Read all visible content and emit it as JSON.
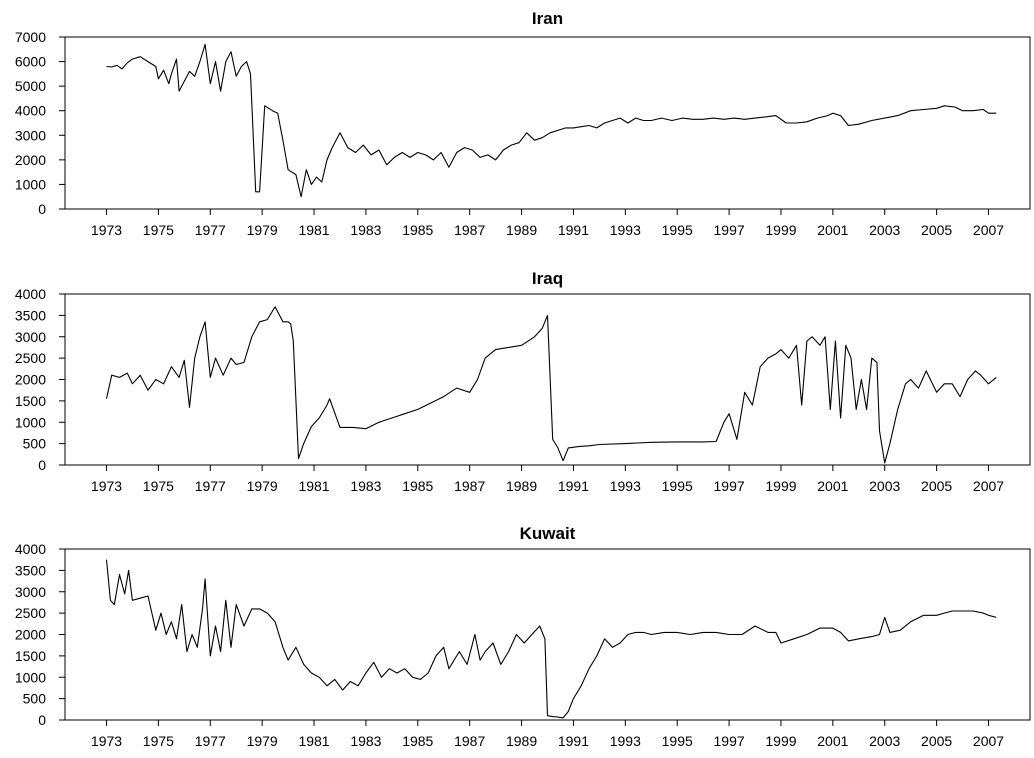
{
  "chart_data": [
    {
      "type": "line",
      "title": "Iran",
      "ylim": [
        0,
        7000
      ],
      "yticks": [
        0,
        1000,
        2000,
        3000,
        4000,
        5000,
        6000,
        7000
      ],
      "xlim": [
        1971.4,
        2008.6
      ],
      "xticks": [
        1973,
        1975,
        1977,
        1979,
        1981,
        1983,
        1985,
        1987,
        1989,
        1991,
        1993,
        1995,
        1997,
        1999,
        2001,
        2003,
        2005,
        2007
      ],
      "x": [
        1973.0,
        1973.2,
        1973.4,
        1973.6,
        1973.8,
        1974.0,
        1974.3,
        1974.6,
        1974.9,
        1975.0,
        1975.2,
        1975.4,
        1975.5,
        1975.7,
        1975.8,
        1976.0,
        1976.2,
        1976.4,
        1976.6,
        1976.8,
        1977.0,
        1977.2,
        1977.4,
        1977.6,
        1977.8,
        1978.0,
        1978.2,
        1978.4,
        1978.55,
        1978.75,
        1978.9,
        1979.1,
        1979.4,
        1979.6,
        1979.8,
        1980.0,
        1980.3,
        1980.5,
        1980.7,
        1980.9,
        1981.1,
        1981.3,
        1981.5,
        1981.7,
        1982.0,
        1982.3,
        1982.6,
        1982.9,
        1983.2,
        1983.5,
        1983.8,
        1984.1,
        1984.4,
        1984.7,
        1985.0,
        1985.3,
        1985.6,
        1985.9,
        1986.2,
        1986.5,
        1986.8,
        1987.1,
        1987.4,
        1987.7,
        1988.0,
        1988.3,
        1988.6,
        1988.9,
        1989.2,
        1989.5,
        1989.8,
        1990.1,
        1990.4,
        1990.7,
        1991.0,
        1991.3,
        1991.6,
        1991.9,
        1992.2,
        1992.5,
        1992.8,
        1993.1,
        1993.4,
        1993.7,
        1994.0,
        1994.4,
        1994.8,
        1995.2,
        1995.6,
        1996.0,
        1996.4,
        1996.8,
        1997.2,
        1997.6,
        1998.0,
        1998.4,
        1998.8,
        1999.2,
        1999.6,
        2000.0,
        2000.4,
        2000.8,
        2001.0,
        2001.3,
        2001.6,
        2002.0,
        2002.5,
        2003.0,
        2003.5,
        2004.0,
        2004.5,
        2005.0,
        2005.3,
        2005.7,
        2006.0,
        2006.4,
        2006.8,
        2007.0,
        2007.3
      ],
      "values": [
        5800,
        5780,
        5850,
        5700,
        5950,
        6100,
        6200,
        6000,
        5800,
        5300,
        5650,
        5100,
        5500,
        6100,
        4800,
        5200,
        5600,
        5400,
        6000,
        6700,
        5100,
        6000,
        4800,
        6000,
        6400,
        5400,
        5800,
        6000,
        5500,
        700,
        700,
        4200,
        4000,
        3900,
        2800,
        1600,
        1400,
        500,
        1600,
        1000,
        1300,
        1100,
        2000,
        2500,
        3100,
        2500,
        2300,
        2600,
        2200,
        2400,
        1800,
        2100,
        2300,
        2100,
        2300,
        2200,
        2000,
        2300,
        1700,
        2300,
        2500,
        2400,
        2100,
        2200,
        2000,
        2400,
        2600,
        2700,
        3100,
        2800,
        2900,
        3100,
        3200,
        3300,
        3300,
        3350,
        3400,
        3300,
        3500,
        3600,
        3700,
        3500,
        3700,
        3600,
        3600,
        3700,
        3600,
        3700,
        3650,
        3650,
        3700,
        3650,
        3700,
        3650,
        3700,
        3750,
        3800,
        3500,
        3500,
        3550,
        3700,
        3800,
        3900,
        3800,
        3400,
        3450,
        3600,
        3700,
        3800,
        4000,
        4050,
        4100,
        4200,
        4150,
        4000,
        4000,
        4050,
        3900,
        3900
      ]
    },
    {
      "type": "line",
      "title": "Iraq",
      "ylim": [
        0,
        4000
      ],
      "yticks": [
        0,
        500,
        1000,
        1500,
        2000,
        2500,
        3000,
        3500,
        4000
      ],
      "xlim": [
        1971.4,
        2008.6
      ],
      "xticks": [
        1973,
        1975,
        1977,
        1979,
        1981,
        1983,
        1985,
        1987,
        1989,
        1991,
        1993,
        1995,
        1997,
        1999,
        2001,
        2003,
        2005,
        2007
      ],
      "x": [
        1973.0,
        1973.2,
        1973.5,
        1973.8,
        1974.0,
        1974.3,
        1974.6,
        1974.9,
        1975.2,
        1975.5,
        1975.8,
        1976.0,
        1976.2,
        1976.4,
        1976.6,
        1976.8,
        1977.0,
        1977.2,
        1977.5,
        1977.8,
        1978.0,
        1978.3,
        1978.6,
        1978.9,
        1979.2,
        1979.5,
        1979.8,
        1980.0,
        1980.1,
        1980.2,
        1980.4,
        1980.6,
        1980.9,
        1981.2,
        1981.5,
        1981.6,
        1982.0,
        1982.5,
        1983.0,
        1983.5,
        1984.0,
        1984.5,
        1985.0,
        1985.5,
        1986.0,
        1986.5,
        1987.0,
        1987.3,
        1987.6,
        1988.0,
        1988.5,
        1989.0,
        1989.5,
        1989.8,
        1990.0,
        1990.2,
        1990.4,
        1990.6,
        1990.8,
        1991.2,
        1991.6,
        1992.0,
        1993.0,
        1994.0,
        1995.0,
        1996.0,
        1996.5,
        1996.8,
        1997.0,
        1997.3,
        1997.6,
        1997.9,
        1998.2,
        1998.5,
        1998.8,
        1999.0,
        1999.3,
        1999.6,
        1999.8,
        2000.0,
        2000.2,
        2000.5,
        2000.7,
        2000.9,
        2001.1,
        2001.3,
        2001.5,
        2001.7,
        2001.9,
        2002.1,
        2002.3,
        2002.5,
        2002.7,
        2002.8,
        2003.0,
        2003.2,
        2003.5,
        2003.8,
        2004.0,
        2004.3,
        2004.6,
        2005.0,
        2005.3,
        2005.6,
        2005.9,
        2006.2,
        2006.5,
        2006.7,
        2007.0,
        2007.3
      ],
      "values": [
        1550,
        2100,
        2050,
        2150,
        1900,
        2100,
        1750,
        2000,
        1900,
        2300,
        2050,
        2450,
        1350,
        2500,
        3000,
        3350,
        2050,
        2500,
        2100,
        2500,
        2350,
        2400,
        3000,
        3350,
        3400,
        3700,
        3350,
        3350,
        3300,
        2900,
        150,
        500,
        900,
        1100,
        1400,
        1550,
        880,
        880,
        850,
        1000,
        1100,
        1200,
        1300,
        1450,
        1600,
        1800,
        1700,
        2000,
        2500,
        2700,
        2750,
        2800,
        3000,
        3200,
        3500,
        600,
        400,
        100,
        400,
        430,
        450,
        480,
        500,
        530,
        540,
        540,
        550,
        1000,
        1200,
        600,
        1700,
        1400,
        2300,
        2500,
        2600,
        2700,
        2500,
        2800,
        1400,
        2900,
        3000,
        2800,
        3000,
        1300,
        2900,
        1100,
        2800,
        2500,
        1300,
        2000,
        1300,
        2500,
        2400,
        800,
        50,
        500,
        1300,
        1900,
        2000,
        1800,
        2200,
        1700,
        1900,
        1900,
        1600,
        2000,
        2200,
        2100,
        1900,
        2050
      ]
    },
    {
      "type": "line",
      "title": "Kuwait",
      "ylim": [
        0,
        4000
      ],
      "yticks": [
        0,
        500,
        1000,
        1500,
        2000,
        2500,
        3000,
        3500,
        4000
      ],
      "xlim": [
        1971.4,
        2008.6
      ],
      "xticks": [
        1973,
        1975,
        1977,
        1979,
        1981,
        1983,
        1985,
        1987,
        1989,
        1991,
        1993,
        1995,
        1997,
        1999,
        2001,
        2003,
        2005,
        2007
      ],
      "x": [
        1973.0,
        1973.15,
        1973.3,
        1973.5,
        1973.7,
        1973.85,
        1974.0,
        1974.3,
        1974.6,
        1974.9,
        1975.1,
        1975.3,
        1975.5,
        1975.7,
        1975.9,
        1976.1,
        1976.3,
        1976.5,
        1976.7,
        1976.8,
        1977.0,
        1977.2,
        1977.4,
        1977.6,
        1977.8,
        1978.0,
        1978.3,
        1978.6,
        1978.9,
        1979.2,
        1979.5,
        1979.8,
        1980.0,
        1980.3,
        1980.6,
        1980.9,
        1981.2,
        1981.5,
        1981.8,
        1982.1,
        1982.4,
        1982.7,
        1983.0,
        1983.3,
        1983.6,
        1983.9,
        1984.2,
        1984.5,
        1984.8,
        1985.1,
        1985.4,
        1985.7,
        1986.0,
        1986.2,
        1986.4,
        1986.6,
        1986.9,
        1987.2,
        1987.4,
        1987.6,
        1987.9,
        1988.2,
        1988.5,
        1988.8,
        1989.1,
        1989.4,
        1989.7,
        1989.9,
        1990.0,
        1990.2,
        1990.4,
        1990.6,
        1990.8,
        1991.0,
        1991.3,
        1991.6,
        1991.9,
        1992.2,
        1992.5,
        1992.8,
        1993.1,
        1993.4,
        1993.7,
        1994.0,
        1994.5,
        1995.0,
        1995.5,
        1996.0,
        1996.5,
        1997.0,
        1997.5,
        1998.0,
        1998.5,
        1998.8,
        1999.0,
        1999.5,
        2000.0,
        2000.5,
        2001.0,
        2001.3,
        2001.6,
        2002.0,
        2002.5,
        2002.8,
        2003.0,
        2003.2,
        2003.6,
        2004.0,
        2004.5,
        2005.0,
        2005.3,
        2005.6,
        2006.0,
        2006.4,
        2006.8,
        2007.0,
        2007.3
      ],
      "values": [
        3750,
        2800,
        2700,
        3400,
        2950,
        3500,
        2800,
        2850,
        2900,
        2100,
        2500,
        2000,
        2300,
        1900,
        2700,
        1600,
        2000,
        1700,
        2600,
        3300,
        1500,
        2200,
        1600,
        2800,
        1700,
        2700,
        2200,
        2600,
        2600,
        2500,
        2300,
        1700,
        1400,
        1700,
        1300,
        1100,
        1000,
        800,
        950,
        700,
        900,
        800,
        1100,
        1350,
        1000,
        1200,
        1100,
        1200,
        1000,
        950,
        1100,
        1500,
        1700,
        1200,
        1400,
        1600,
        1300,
        2000,
        1400,
        1600,
        1800,
        1300,
        1600,
        2000,
        1800,
        2000,
        2200,
        1900,
        100,
        80,
        70,
        50,
        200,
        500,
        800,
        1200,
        1500,
        1900,
        1700,
        1800,
        2000,
        2050,
        2050,
        2000,
        2050,
        2050,
        2000,
        2050,
        2050,
        2000,
        2000,
        2200,
        2050,
        2050,
        1800,
        1900,
        2000,
        2150,
        2150,
        2050,
        1850,
        1900,
        1950,
        2000,
        2400,
        2050,
        2100,
        2300,
        2450,
        2450,
        2500,
        2550,
        2550,
        2550,
        2500,
        2450,
        2400
      ]
    }
  ]
}
